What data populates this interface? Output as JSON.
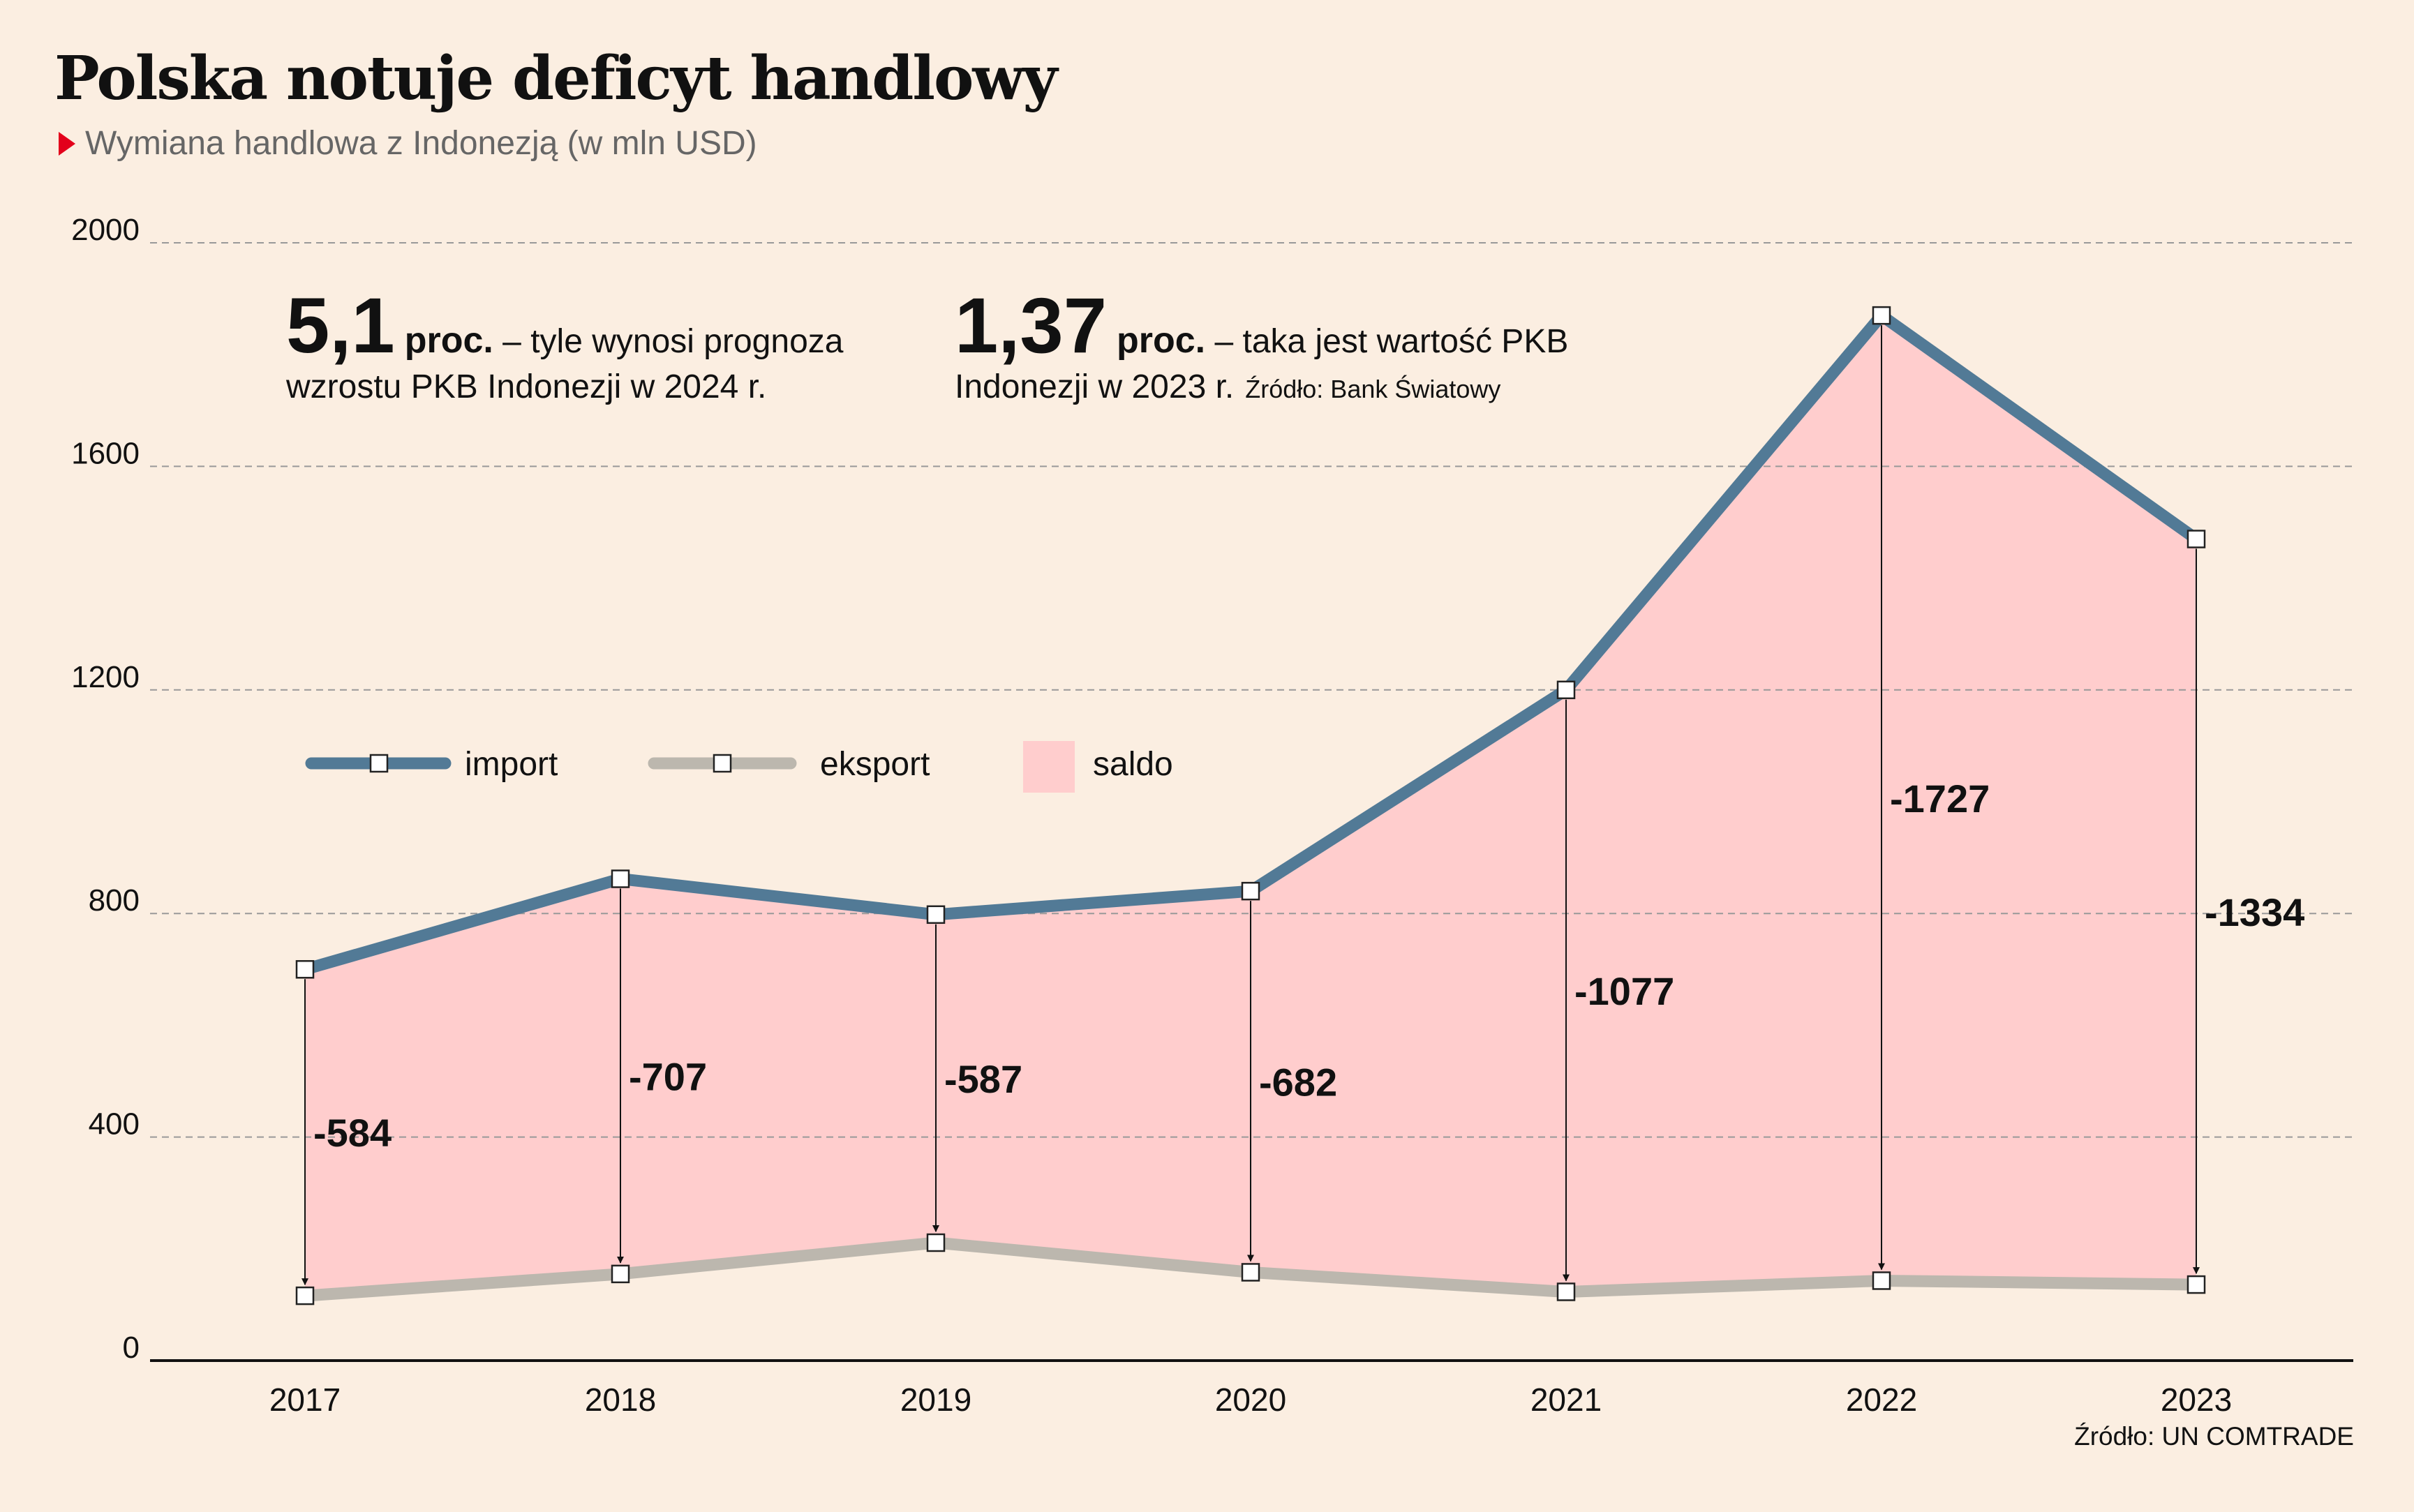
{
  "title": "Polska notuje deficyt handlowy",
  "subtitle": "Wymiana handlowa z Indonezją (w mln USD)",
  "source": "Źródło: UN COMTRADE",
  "colors": {
    "background": "#fbeee1",
    "import": "#527a96",
    "eksport": "#bcb7ae",
    "saldo": "#ffcdcd",
    "subtitle_marker": "#e3001b"
  },
  "annotations": [
    {
      "big": "5,1",
      "unit": "proc.",
      "rest": " – tyle wynosi prognoza",
      "line2": "wzrostu PKB Indonezji w 2024 r.",
      "note": ""
    },
    {
      "big": "1,37",
      "unit": "proc.",
      "rest": " – taka jest wartość PKB",
      "line2": "Indonezji w 2023 r.",
      "note": "Źródło: Bank Światowy"
    }
  ],
  "chart_data": {
    "type": "line",
    "x": [
      "2017",
      "2018",
      "2019",
      "2020",
      "2021",
      "2022",
      "2023"
    ],
    "ylim": [
      0,
      2000
    ],
    "yticks": [
      0,
      400,
      800,
      1200,
      1600,
      2000
    ],
    "grid": true,
    "legend_position": "middle-left",
    "series": [
      {
        "name": "import",
        "values": [
          700,
          862,
          798,
          840,
          1200,
          1870,
          1470
        ]
      },
      {
        "name": "eksport",
        "values": [
          116,
          155,
          211,
          158,
          123,
          143,
          136
        ]
      }
    ],
    "area": {
      "name": "saldo",
      "between": [
        "import",
        "eksport"
      ]
    },
    "data_labels": [
      "-584",
      "-707",
      "-587",
      "-682",
      "-1077",
      "-1727",
      "-1334"
    ]
  }
}
